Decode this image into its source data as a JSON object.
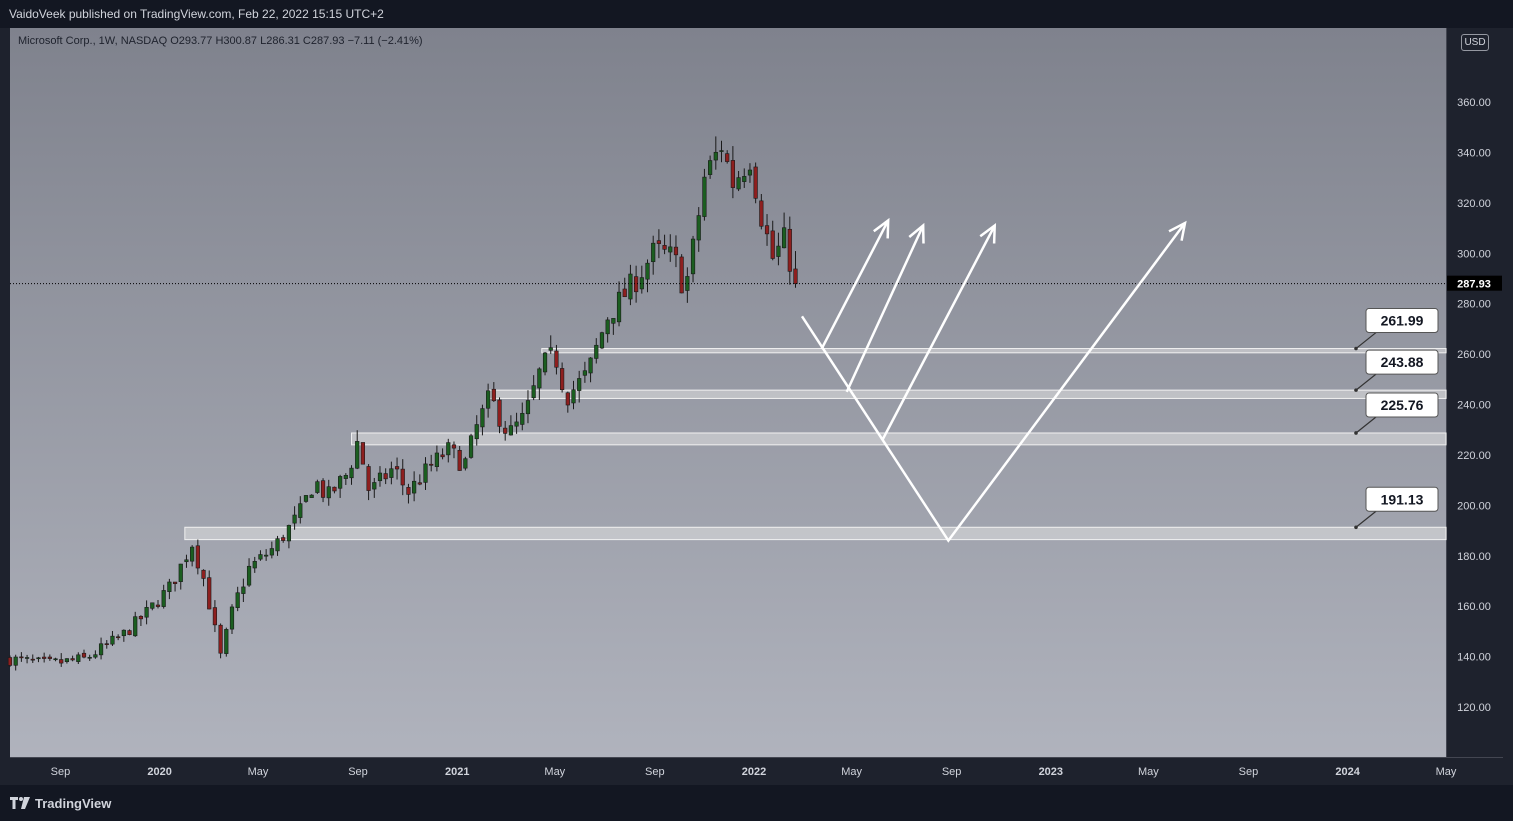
{
  "header": {
    "published_text": "VaidoVeek published on TradingView.com, Feb 22, 2022 15:15 UTC+2"
  },
  "footer": {
    "brand": "TradingView"
  },
  "legend": {
    "text": "Microsoft Corp., 1W, NASDAQ  O293.77  H300.87  L286.31  C287.93  −7.11 (−2.41%)"
  },
  "currency": "USD",
  "colors": {
    "up_candle": "#1b5e20",
    "down_candle": "#8e1f1f",
    "zone_fill": "#e0e0e0",
    "arrow": "#ffffff",
    "price_tag_bg": "#000000",
    "bg_top": "#7f828d",
    "bg_bottom": "#b0b3bd"
  },
  "chart_data": {
    "type": "candlestick",
    "title": "Microsoft Corp., 1W, NASDAQ",
    "ylim": [
      100,
      380
    ],
    "y_ticks": [
      120,
      140,
      160,
      180,
      200,
      220,
      240,
      260,
      280,
      300,
      320,
      340,
      360
    ],
    "y_tick_labels": [
      "120.00",
      "140.00",
      "160.00",
      "180.00",
      "200.00",
      "220.00",
      "240.00",
      "260.00",
      "280.00",
      "300.00",
      "320.00",
      "340.00",
      "360.00"
    ],
    "x_tick_labels": [
      {
        "label": "Sep",
        "date": "2019-09-01",
        "bold": false
      },
      {
        "label": "2020",
        "date": "2020-01-01",
        "bold": true
      },
      {
        "label": "May",
        "date": "2020-05-01",
        "bold": false
      },
      {
        "label": "Sep",
        "date": "2020-09-01",
        "bold": false
      },
      {
        "label": "2021",
        "date": "2021-01-01",
        "bold": true
      },
      {
        "label": "May",
        "date": "2021-05-01",
        "bold": false
      },
      {
        "label": "Sep",
        "date": "2021-09-01",
        "bold": false
      },
      {
        "label": "2022",
        "date": "2022-01-01",
        "bold": true
      },
      {
        "label": "May",
        "date": "2022-05-01",
        "bold": false
      },
      {
        "label": "Sep",
        "date": "2022-09-01",
        "bold": false
      },
      {
        "label": "2023",
        "date": "2023-01-01",
        "bold": true
      },
      {
        "label": "May",
        "date": "2023-05-01",
        "bold": false
      },
      {
        "label": "Sep",
        "date": "2023-09-01",
        "bold": false
      },
      {
        "label": "2024",
        "date": "2024-01-01",
        "bold": true
      },
      {
        "label": "May",
        "date": "2024-05-01",
        "bold": false
      }
    ],
    "xlim_dates": [
      "2019-07-01",
      "2024-05-01"
    ],
    "last_price": 287.93,
    "last_price_label": "287.93",
    "price_path": [
      [
        "2019-07-01",
        139
      ],
      [
        "2019-08-15",
        137
      ],
      [
        "2019-10-01",
        139
      ],
      [
        "2019-11-15",
        148
      ],
      [
        "2019-12-15",
        157
      ],
      [
        "2020-01-15",
        168
      ],
      [
        "2020-02-10",
        185
      ],
      [
        "2020-02-25",
        170
      ],
      [
        "2020-03-16",
        140
      ],
      [
        "2020-04-01",
        160
      ],
      [
        "2020-04-20",
        175
      ],
      [
        "2020-05-20",
        183
      ],
      [
        "2020-06-20",
        196
      ],
      [
        "2020-07-10",
        210
      ],
      [
        "2020-07-25",
        203
      ],
      [
        "2020-08-20",
        213
      ],
      [
        "2020-09-01",
        226
      ],
      [
        "2020-09-15",
        205
      ],
      [
        "2020-10-15",
        215
      ],
      [
        "2020-11-01",
        205
      ],
      [
        "2020-11-25",
        214
      ],
      [
        "2020-12-20",
        222
      ],
      [
        "2021-01-10",
        216
      ],
      [
        "2021-01-25",
        231
      ],
      [
        "2021-02-10",
        243
      ],
      [
        "2021-03-05",
        228
      ],
      [
        "2021-03-25",
        235
      ],
      [
        "2021-04-15",
        255
      ],
      [
        "2021-05-01",
        260
      ],
      [
        "2021-05-15",
        243
      ],
      [
        "2021-06-10",
        252
      ],
      [
        "2021-07-05",
        275
      ],
      [
        "2021-08-10",
        290
      ],
      [
        "2021-09-01",
        301
      ],
      [
        "2021-09-25",
        298
      ],
      [
        "2021-10-08",
        285
      ],
      [
        "2021-10-20",
        305
      ],
      [
        "2021-11-01",
        330
      ],
      [
        "2021-11-22",
        343
      ],
      [
        "2021-12-06",
        328
      ],
      [
        "2021-12-27",
        338
      ],
      [
        "2022-01-10",
        315
      ],
      [
        "2022-01-24",
        298
      ],
      [
        "2022-02-07",
        305
      ],
      [
        "2022-02-22",
        288
      ]
    ],
    "zones": [
      {
        "label": "261.99",
        "low": 260.5,
        "high": 262.2,
        "start": "2021-04-15"
      },
      {
        "label": "243.88",
        "low": 242.4,
        "high": 245.7,
        "start": "2021-02-08"
      },
      {
        "label": "225.76",
        "low": 224.0,
        "high": 228.7,
        "start": "2020-08-24"
      },
      {
        "label": "191.13",
        "low": 186.4,
        "high": 191.3,
        "start": "2020-02-01"
      }
    ],
    "projection_v": [
      [
        "2022-03-01",
        275
      ],
      [
        "2022-08-28",
        186
      ],
      [
        "2023-06-15",
        312
      ]
    ],
    "bounce_arrows": [
      {
        "from": [
          "2022-03-25",
          262
        ],
        "to": [
          "2022-06-15",
          313
        ]
      },
      {
        "from": [
          "2022-04-25",
          245
        ],
        "to": [
          "2022-07-28",
          311
        ]
      },
      {
        "from": [
          "2022-06-08",
          226
        ],
        "to": [
          "2022-10-24",
          311
        ]
      }
    ]
  }
}
